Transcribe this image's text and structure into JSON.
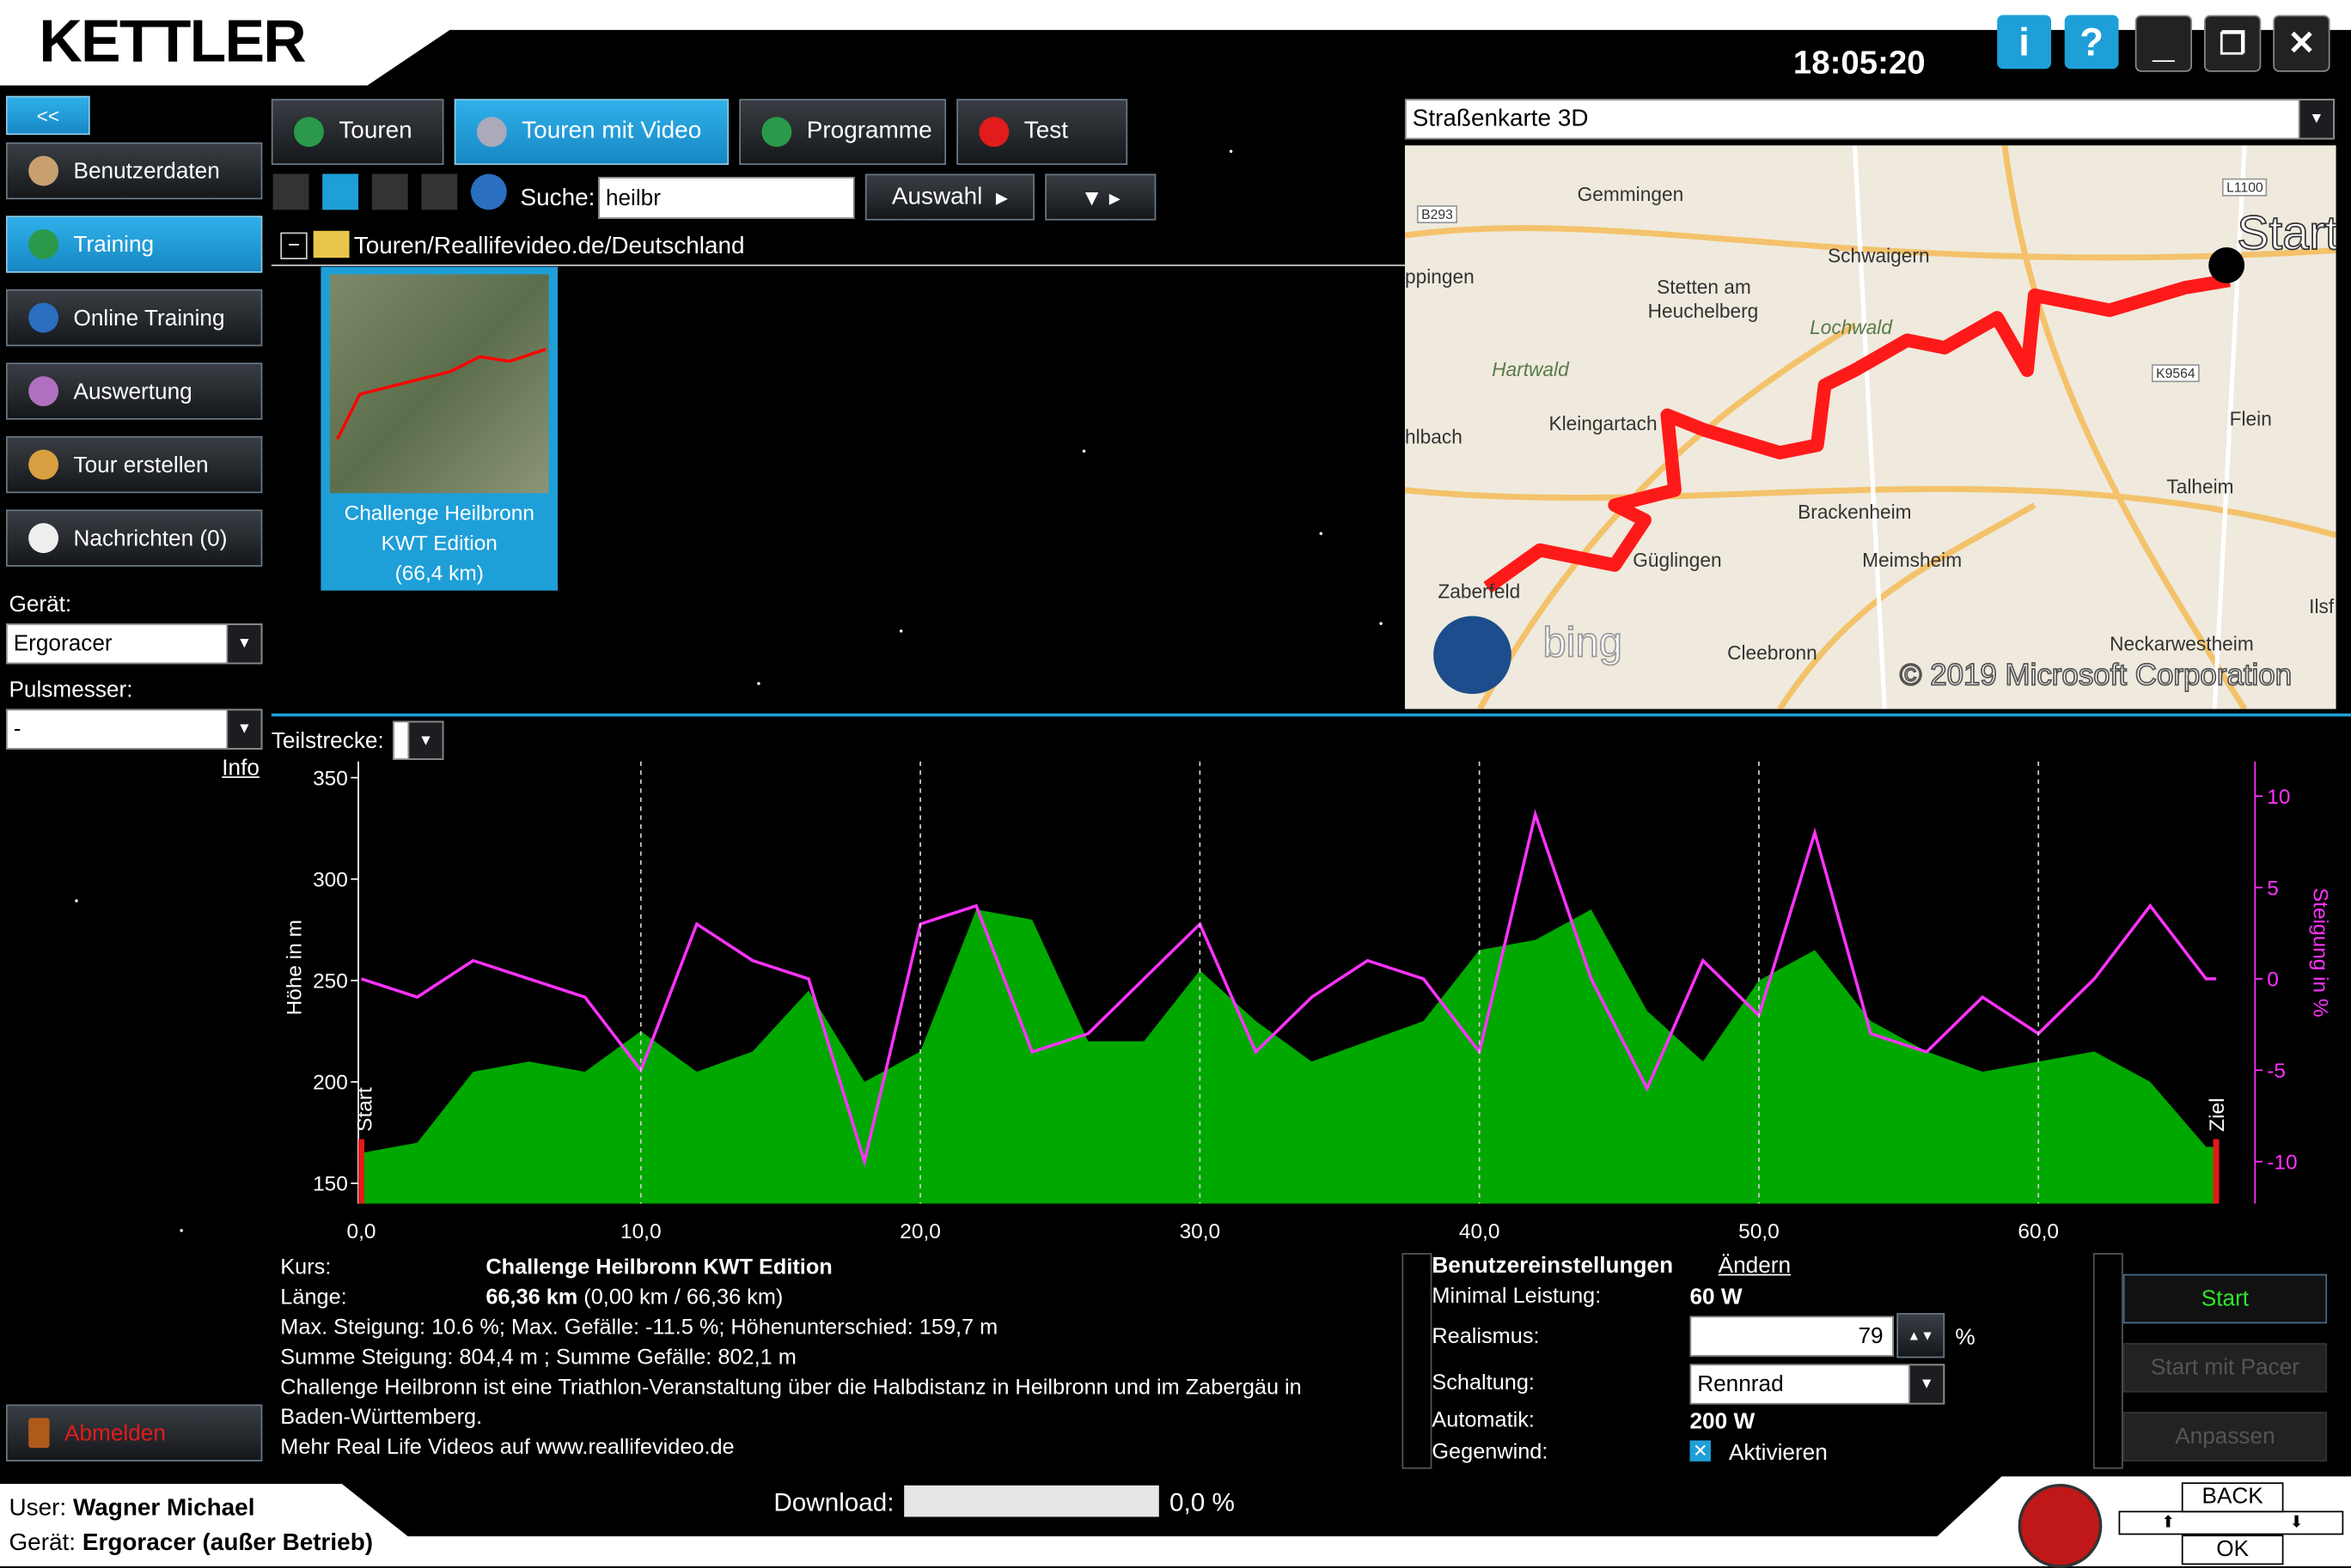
{
  "header": {
    "brand": "KETTLER",
    "clock": "18:05:20",
    "info_button": "i",
    "help_button": "?"
  },
  "sidebar": {
    "collapse": "<<",
    "nav": [
      "Benutzerdaten",
      "Training",
      "Online Training",
      "Auswertung",
      "Tour erstellen",
      "Nachrichten (0)"
    ],
    "device_label": "Gerät:",
    "device": "Ergoracer",
    "pulse_label": "Pulsmesser:",
    "pulse": "-",
    "info": "Info",
    "logout": "Abmelden"
  },
  "tabs": [
    "Touren",
    "Touren mit Video",
    "Programme",
    "Test"
  ],
  "toolbar": {
    "search_label": "Suche:",
    "search_value": "heilbr",
    "select_button": "Auswahl"
  },
  "path": "Touren/Reallifevideo.de/Deutschland",
  "tile": {
    "lines": [
      "Challenge Heilbronn",
      "KWT Edition",
      "(66,4 km)"
    ]
  },
  "map": {
    "dropdown": "Straßenkarte 3D",
    "places": [
      "Gemmingen",
      "Schwaigern",
      "Stetten am",
      "Heuchelberg",
      "Lochwald",
      "Hartwald",
      "ppingen",
      "hlbach",
      "Kleingartach",
      "Flein",
      "Talheim",
      "Brackenheim",
      "Güglingen",
      "Meimsheim",
      "Zaberfeld",
      "Cleebronn",
      "Neckarwestheim",
      "Ilsf",
      "B293",
      "K9564",
      "L1100"
    ],
    "start": "Start",
    "bing": "bing",
    "copyright": "© 2019 Microsoft Corporation"
  },
  "section_label": "Teilstrecke:",
  "chart_data": {
    "type": "area",
    "y_label": "Höhe in m",
    "y2_label": "Steigung in %",
    "start_label": "Start",
    "end_label": "Ziel",
    "x": [
      0,
      2,
      4,
      6,
      8,
      10,
      12,
      14,
      16,
      18,
      20,
      22,
      24,
      26,
      28,
      30,
      32,
      34,
      36,
      38,
      40,
      42,
      44,
      46,
      48,
      50,
      52,
      54,
      56,
      58,
      60,
      62,
      64,
      66,
      66.36
    ],
    "series": [
      {
        "name": "Höhe",
        "color": "#00a800",
        "values": [
          165,
          170,
          205,
          210,
          205,
          225,
          205,
          215,
          245,
          200,
          215,
          285,
          280,
          220,
          220,
          255,
          230,
          210,
          220,
          230,
          265,
          270,
          285,
          235,
          210,
          250,
          265,
          230,
          215,
          205,
          210,
          215,
          200,
          168,
          168
        ]
      },
      {
        "name": "Steigung",
        "color": "#ff33ff",
        "axis": "y2",
        "values": [
          0,
          -1,
          1,
          0,
          -1,
          -5,
          3,
          1,
          0,
          -10,
          3,
          4,
          -4,
          -3,
          0,
          3,
          -4,
          -1,
          1,
          0,
          -4,
          9,
          0,
          -6,
          1,
          -2,
          8,
          -3,
          -4,
          -1,
          -3,
          0,
          4,
          0,
          0
        ]
      }
    ],
    "xlim": [
      0,
      67
    ],
    "ylim": [
      140,
      358
    ],
    "y2lim": [
      -12.3,
      11.9
    ],
    "xticks": [
      {
        "value": 0,
        "label": "0,0"
      },
      {
        "value": 10,
        "label": "10,0"
      },
      {
        "value": 20,
        "label": "20,0"
      },
      {
        "value": 30,
        "label": "30,0"
      },
      {
        "value": 40,
        "label": "40,0"
      },
      {
        "value": 50,
        "label": "50,0"
      },
      {
        "value": 60,
        "label": "60,0"
      }
    ],
    "yticks": [
      150,
      200,
      250,
      300,
      350
    ],
    "y2ticks": [
      -10,
      -5,
      0,
      5,
      10
    ]
  },
  "details": {
    "course_label": "Kurs:",
    "course": "Challenge Heilbronn KWT Edition",
    "length_label": "Länge:",
    "length": "66,36 km",
    "length_detail": "(0,00 km / 66,36 km)",
    "lines": [
      "Max. Steigung: 10.6 %; Max. Gefälle: -11.5 %; Höhenunterschied: 159,7 m",
      "Summe Steigung: 804,4 m ; Summe Gefälle: 802,1 m",
      "Challenge Heilbronn ist eine Triathlon-Veranstaltung über die Halbdistanz in Heilbronn und im Zabergäu in",
      "Baden-Württemberg.",
      "Mehr Real Life Videos auf www.reallifevideo.de"
    ]
  },
  "settings": {
    "title": "Benutzereinstellungen",
    "change": "Ändern",
    "rows": [
      {
        "label": "Minimal Leistung:",
        "value": "60 W"
      },
      {
        "label": "Realismus:",
        "value": "79",
        "unit": "%"
      },
      {
        "label": "Schaltung:",
        "value": "Rennrad"
      },
      {
        "label": "Automatik:",
        "value": "200 W"
      },
      {
        "label": "Gegenwind:",
        "value": "Aktivieren"
      }
    ]
  },
  "actions": [
    "Start",
    "Start mit Pacer",
    "Anpassen"
  ],
  "footer": {
    "user_label": "User:",
    "user": "Wagner Michael",
    "device_label": "Gerät:",
    "device": "Ergoracer (außer Betrieb)",
    "download_label": "Download:",
    "download": "0,0 %",
    "back": "BACK",
    "ok": "OK"
  }
}
